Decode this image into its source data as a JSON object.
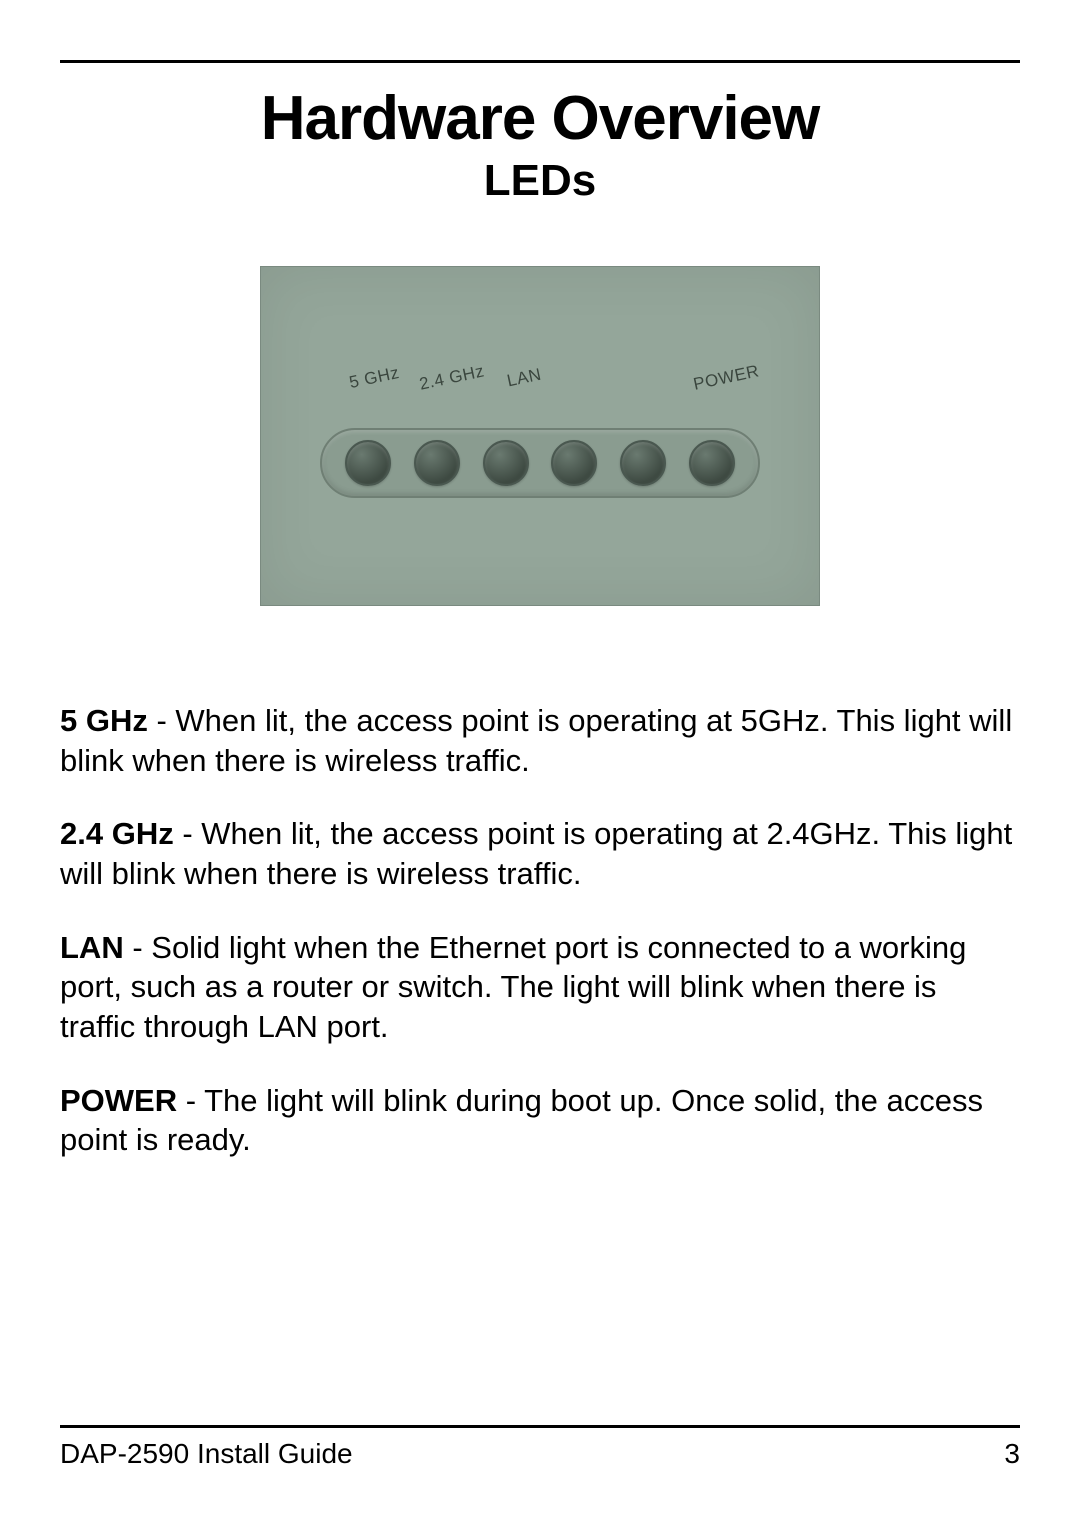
{
  "header": {
    "title": "Hardware Overview",
    "subtitle": "LEDs"
  },
  "image": {
    "panel_bg": "#94a69a",
    "strip_bg": "#8a9c90",
    "led_count": 6,
    "labels": {
      "l1": "5 GHz",
      "l2": "2.4 GHz",
      "l3": "LAN",
      "l4": "POWER"
    }
  },
  "descriptions": [
    {
      "label": "5 GHz",
      "text": " - When lit, the access point is operating at 5GHz. This light will blink when there is wireless traffic."
    },
    {
      "label": "2.4 GHz",
      "text": " - When lit, the access point is operating at 2.4GHz. This light will blink when there is wireless traffic."
    },
    {
      "label": "LAN",
      "text": " - Solid light when the Ethernet port is connected to a working port, such as a router or switch. The light will blink when there is traffic through LAN port."
    },
    {
      "label": "POWER",
      "text": " - The light will blink during boot up. Once solid, the access point is ready."
    }
  ],
  "footer": {
    "guide": "DAP-2590 Install Guide",
    "page": "3"
  }
}
